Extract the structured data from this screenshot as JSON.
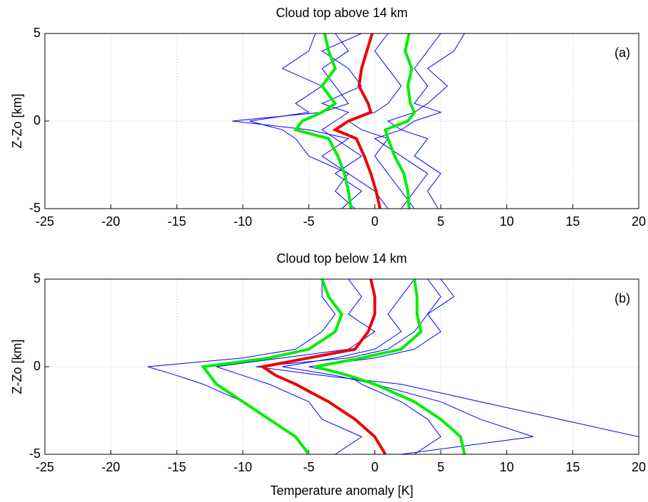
{
  "chart_data": [
    {
      "type": "line",
      "title": "Cloud top above 14 km",
      "ylabel": "Z-Zo [km]",
      "annotation": "(a)",
      "xlim": [
        -25,
        20
      ],
      "ylim": [
        -5,
        5
      ],
      "xticks": [
        -25,
        -20,
        -15,
        -10,
        -5,
        0,
        5,
        10,
        15,
        20
      ],
      "yticks": [
        -5,
        0,
        5
      ],
      "grid": true,
      "series": [
        {
          "color": "#0000ff",
          "y": [
            -5,
            -4,
            -3,
            -2,
            -1,
            -0.5,
            0,
            0.5,
            1,
            2,
            3,
            4,
            5
          ],
          "x": [
            -1.5,
            -3,
            -2,
            -4,
            -2,
            -5,
            -10.8,
            -4,
            -2,
            -3,
            -4,
            -2,
            -3
          ]
        },
        {
          "color": "#0000ff",
          "y": [
            -5,
            -4,
            -3,
            -2,
            -1,
            -0.5,
            0,
            0.5,
            1,
            2,
            3,
            4,
            5
          ],
          "x": [
            4.8,
            4,
            5,
            3,
            4,
            2,
            1,
            3,
            4,
            5.5,
            4,
            6,
            6.8
          ]
        },
        {
          "color": "#0000ff",
          "y": [
            -5,
            -4,
            -3,
            -2,
            -1,
            -0.5,
            0,
            0.5,
            1,
            2,
            3,
            4,
            5
          ],
          "x": [
            1,
            0,
            -2,
            -5,
            -6,
            -7,
            -9.5,
            -5,
            -6,
            -4,
            -7,
            -5,
            -4.5
          ]
        },
        {
          "color": "#0000ff",
          "y": [
            -5,
            -4,
            -3,
            -2,
            -1,
            -0.5,
            0,
            0.5,
            1,
            2,
            3,
            4,
            5
          ],
          "x": [
            3,
            2,
            1,
            0,
            1,
            -1,
            -2,
            0,
            1,
            2,
            1,
            0,
            1
          ]
        },
        {
          "color": "#0000ff",
          "y": [
            -5,
            -4,
            -3,
            -2,
            -1,
            -0.5,
            0,
            0.5,
            1,
            2,
            3,
            4,
            5
          ],
          "x": [
            -2.5,
            -1,
            -3,
            -1,
            -3,
            -4,
            -3,
            -2,
            -4,
            -1,
            -2,
            -4,
            -1
          ]
        },
        {
          "color": "#0000ff",
          "y": [
            -5,
            -4,
            -3,
            -2,
            -1,
            -0.5,
            0,
            0.5,
            1,
            2,
            3,
            4,
            5
          ],
          "x": [
            2,
            3,
            4,
            2,
            0,
            2,
            3,
            5,
            3,
            4,
            3,
            4,
            5
          ]
        },
        {
          "color": "#00ee00",
          "y": [
            -5,
            -4,
            -3,
            -2,
            -1,
            -0.5,
            0,
            0.5,
            1,
            2,
            3,
            4,
            5
          ],
          "x": [
            -1.8,
            -2.0,
            -2.3,
            -2.8,
            -3.5,
            -6.0,
            -5.5,
            -4.0,
            -3.0,
            -4.0,
            -3.0,
            -3.5,
            -3.8
          ]
        },
        {
          "color": "#00ee00",
          "y": [
            -5,
            -4,
            -3,
            -2,
            -1,
            -0.5,
            0,
            0.5,
            1,
            2,
            3,
            4,
            5
          ],
          "x": [
            2.6,
            2.5,
            2.2,
            1.5,
            1.0,
            0.8,
            2.5,
            3.0,
            2.7,
            2.5,
            2.8,
            2.3,
            2.6
          ]
        },
        {
          "color": "#ee0000",
          "y": [
            -5,
            -4,
            -3,
            -2,
            -1,
            -0.5,
            0,
            0.5,
            1,
            2,
            3,
            4,
            5
          ],
          "x": [
            0.4,
            0.1,
            -0.3,
            -0.8,
            -1.4,
            -3.0,
            -2.0,
            -0.3,
            -0.5,
            -1.2,
            -1.0,
            -0.6,
            -0.2
          ]
        }
      ]
    },
    {
      "type": "line",
      "title": "Cloud top below 14 km",
      "ylabel": "Z-Zo [km]",
      "xlabel": "Temperature anomaly [K]",
      "annotation": "(b)",
      "xlim": [
        -25,
        20
      ],
      "ylim": [
        -5,
        5
      ],
      "xticks": [
        -25,
        -20,
        -15,
        -10,
        -5,
        0,
        5,
        10,
        15,
        20
      ],
      "yticks": [
        -5,
        0,
        5
      ],
      "grid": true,
      "series": [
        {
          "color": "#0000ff",
          "y": [
            -5,
            -4,
            -3,
            -2,
            -1,
            -0.5,
            0,
            0.5,
            1,
            2,
            3,
            4,
            5
          ],
          "x": [
            -5,
            -6,
            -8,
            -10,
            -13,
            -15,
            -17.2,
            -10,
            -6,
            -4,
            -3,
            -4,
            -4
          ]
        },
        {
          "color": "#0000ff",
          "y": [
            -5,
            -4,
            -3,
            -2,
            -1,
            -0.5,
            0,
            0.5,
            1,
            2,
            3,
            4,
            5
          ],
          "x": [
            20,
            20,
            14,
            8,
            2,
            -4,
            -9,
            -2,
            1,
            3,
            4,
            5,
            4
          ]
        },
        {
          "color": "#0000ff",
          "y": [
            -5,
            -4,
            -3,
            -2,
            -1,
            -0.5,
            0,
            0.5,
            1,
            2,
            3,
            4,
            5
          ],
          "x": [
            2,
            12,
            8,
            5,
            0,
            -3,
            -7,
            -3,
            0,
            2,
            1,
            2,
            3
          ]
        },
        {
          "color": "#0000ff",
          "y": [
            -5,
            -4,
            -3,
            -2,
            -1,
            -0.5,
            0,
            0.5,
            1,
            2,
            3,
            4,
            5
          ],
          "x": [
            -3,
            -1,
            -4,
            -5,
            -8,
            -10,
            -12,
            -7,
            -2,
            0,
            -2,
            -1,
            -2
          ]
        },
        {
          "color": "#0000ff",
          "y": [
            -5,
            -4,
            -3,
            -2,
            -1,
            -0.5,
            0,
            0.5,
            1,
            2,
            3,
            4,
            5
          ],
          "x": [
            3,
            5,
            4,
            2,
            -1,
            -2,
            -5,
            0,
            3,
            5,
            4,
            6,
            5
          ]
        },
        {
          "color": "#00ee00",
          "y": [
            -5,
            -4,
            -3,
            -2,
            -1,
            -0.5,
            0,
            0.5,
            1,
            2,
            3,
            4,
            5
          ],
          "x": [
            -5,
            -6,
            -8,
            -10,
            -12,
            -12.5,
            -13,
            -8,
            -5,
            -3,
            -2.5,
            -3.5,
            -4
          ]
        },
        {
          "color": "#00ee00",
          "y": [
            -5,
            -4,
            -3,
            -2,
            -1,
            -0.5,
            0,
            0.5,
            1,
            2,
            3,
            4,
            5
          ],
          "x": [
            6.8,
            6.5,
            5,
            3,
            0,
            -2,
            -4.5,
            -1,
            2,
            3.5,
            3.2,
            3.2,
            3
          ]
        },
        {
          "color": "#ee0000",
          "y": [
            -5,
            -4,
            -3,
            -2,
            -1,
            -0.5,
            0,
            0.5,
            1,
            2,
            3,
            4,
            5
          ],
          "x": [
            0.8,
            0,
            -1.5,
            -3.5,
            -6,
            -7.5,
            -8.5,
            -5,
            -1.5,
            -0.5,
            0,
            0,
            -0.3
          ]
        }
      ]
    }
  ]
}
